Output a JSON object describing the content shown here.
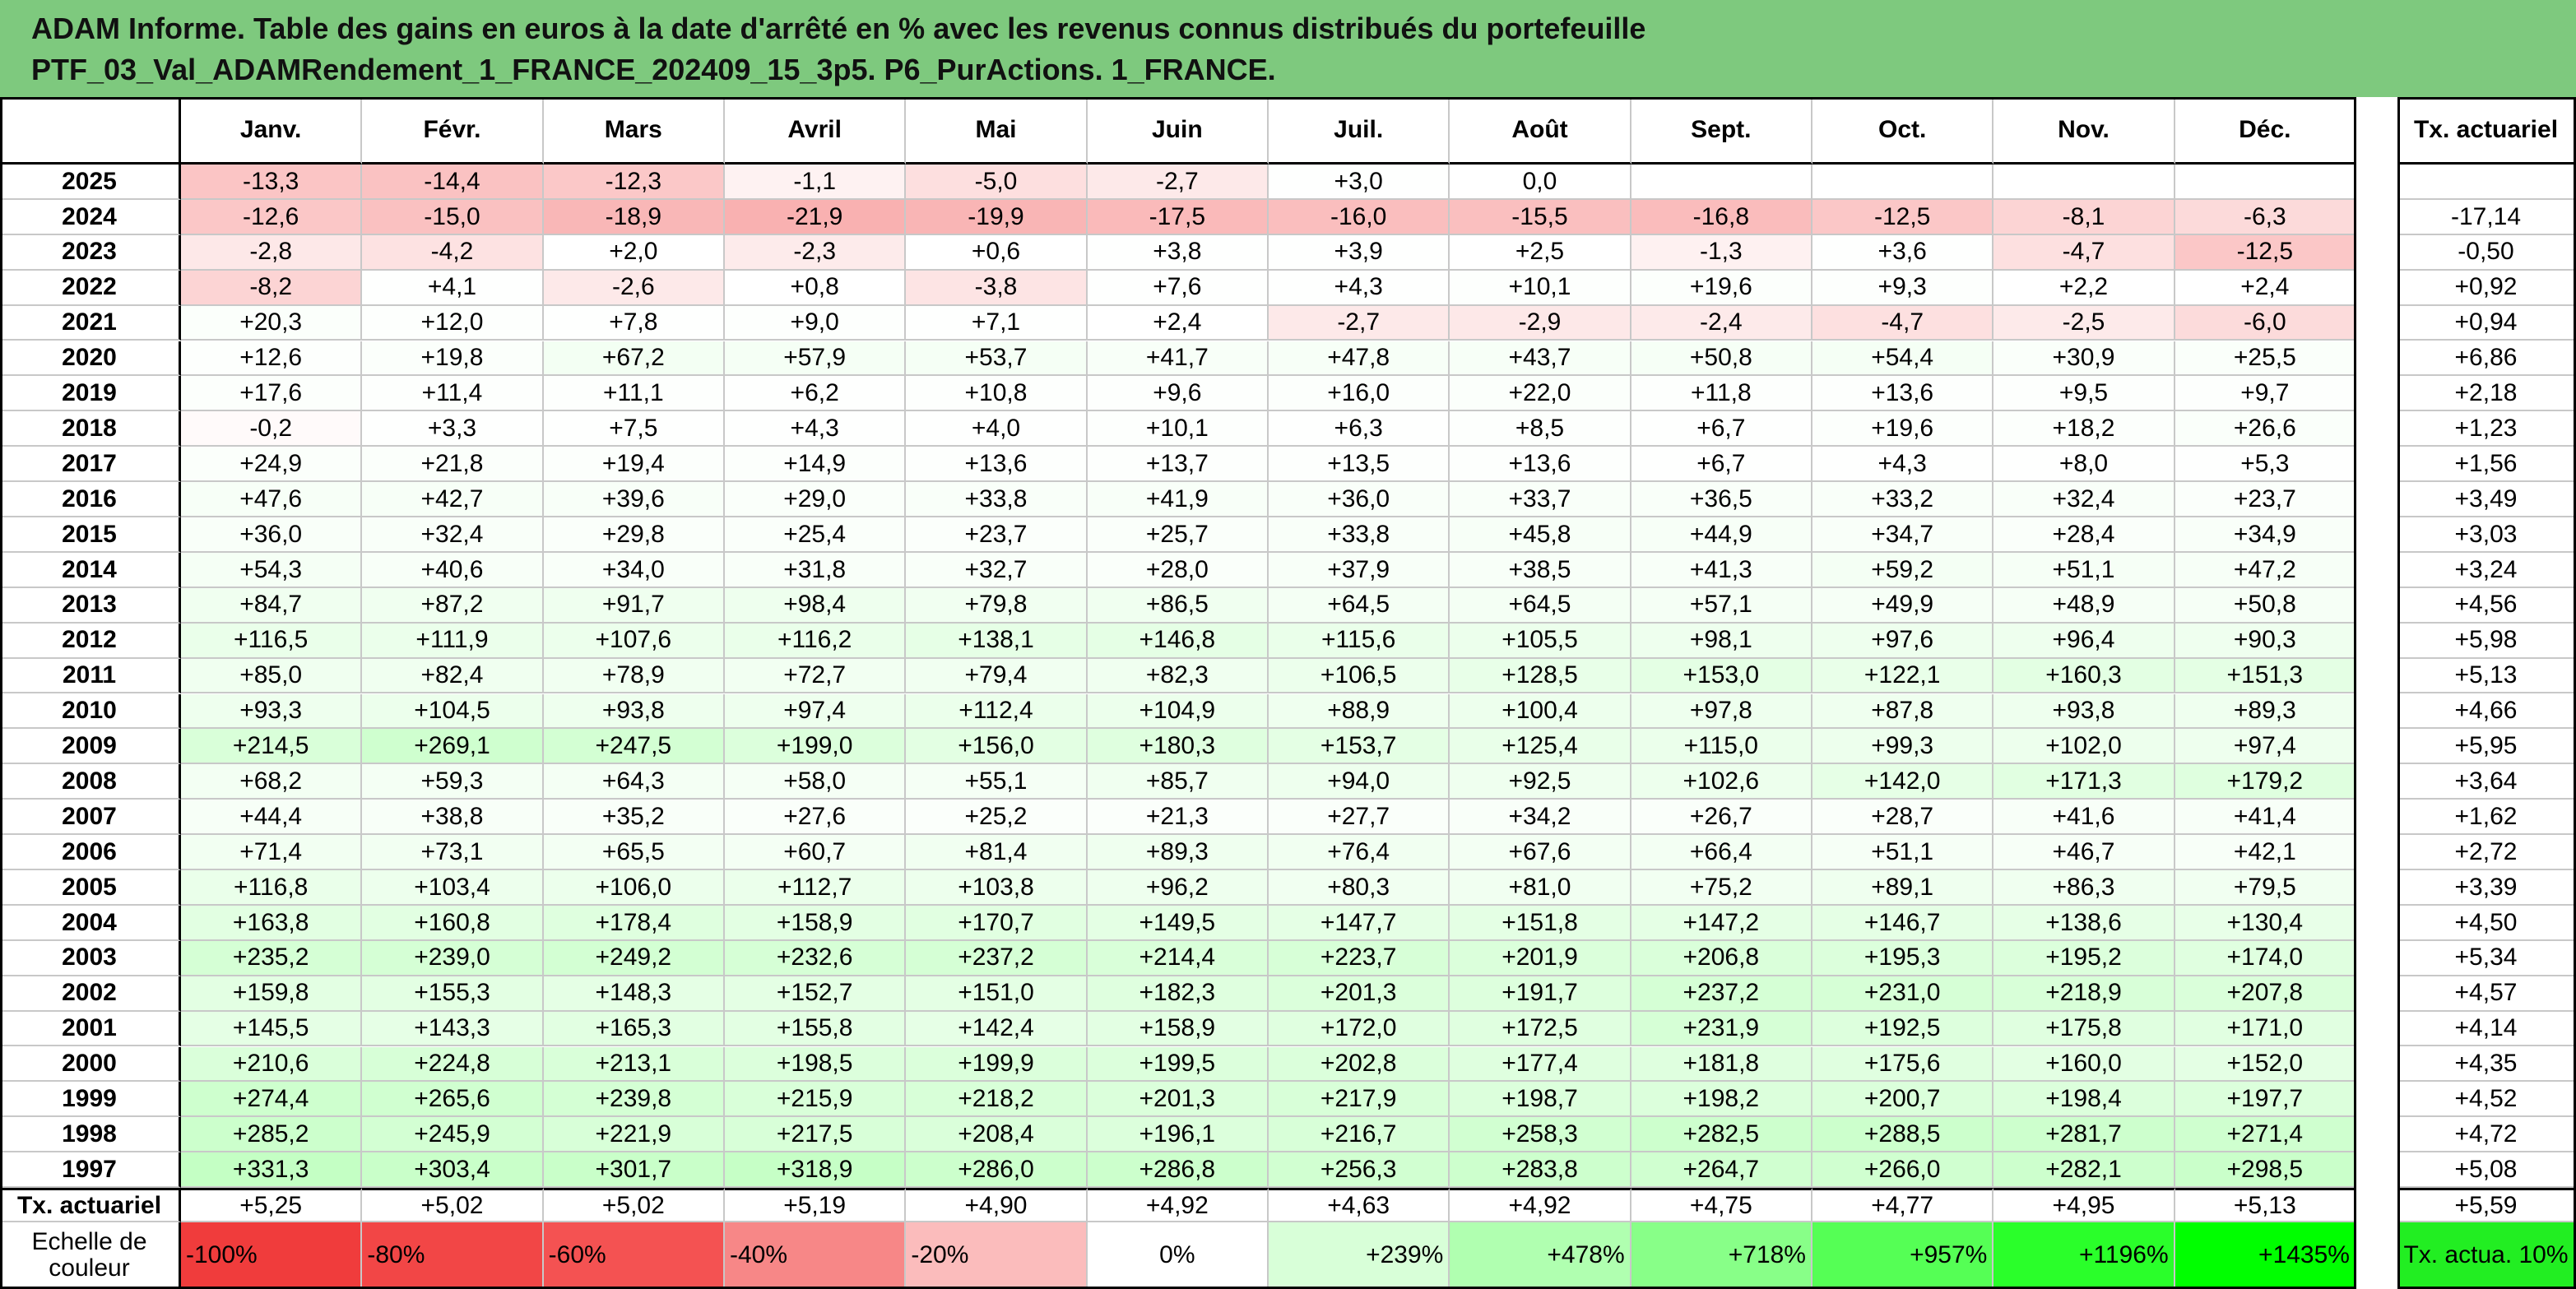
{
  "title": [
    "ADAM Informe. Table des gains en euros à la date d'arrêté en % avec les revenus connus distribués du portefeuille",
    "PTF_03_Val_ADAMRendement_1_FRANCE_202409_15_3p5. P6_PurActions. 1_FRANCE."
  ],
  "table": {
    "columns": [
      "Janv.",
      "Févr.",
      "Mars",
      "Avril",
      "Mai",
      "Juin",
      "Juil.",
      "Août",
      "Sept.",
      "Oct.",
      "Nov.",
      "Déc."
    ],
    "rate_header": "Tx. actuariel",
    "rows": [
      {
        "year": "2025",
        "values": [
          "-13,3",
          "-14,4",
          "-12,3",
          "-1,1",
          "-5,0",
          "-2,7",
          "+3,0",
          "0,0",
          null,
          null,
          null,
          null
        ],
        "rate": null
      },
      {
        "year": "2024",
        "values": [
          "-12,6",
          "-15,0",
          "-18,9",
          "-21,9",
          "-19,9",
          "-17,5",
          "-16,0",
          "-15,5",
          "-16,8",
          "-12,5",
          "-8,1",
          "-6,3"
        ],
        "rate": "-17,14"
      },
      {
        "year": "2023",
        "values": [
          "-2,8",
          "-4,2",
          "+2,0",
          "-2,3",
          "+0,6",
          "+3,8",
          "+3,9",
          "+2,5",
          "-1,3",
          "+3,6",
          "-4,7",
          "-12,5"
        ],
        "rate": "-0,50"
      },
      {
        "year": "2022",
        "values": [
          "-8,2",
          "+4,1",
          "-2,6",
          "+0,8",
          "-3,8",
          "+7,6",
          "+4,3",
          "+10,1",
          "+19,6",
          "+9,3",
          "+2,2",
          "+2,4"
        ],
        "rate": "+0,92"
      },
      {
        "year": "2021",
        "values": [
          "+20,3",
          "+12,0",
          "+7,8",
          "+9,0",
          "+7,1",
          "+2,4",
          "-2,7",
          "-2,9",
          "-2,4",
          "-4,7",
          "-2,5",
          "-6,0"
        ],
        "rate": "+0,94"
      },
      {
        "year": "2020",
        "values": [
          "+12,6",
          "+19,8",
          "+67,2",
          "+57,9",
          "+53,7",
          "+41,7",
          "+47,8",
          "+43,7",
          "+50,8",
          "+54,4",
          "+30,9",
          "+25,5"
        ],
        "rate": "+6,86"
      },
      {
        "year": "2019",
        "values": [
          "+17,6",
          "+11,4",
          "+11,1",
          "+6,2",
          "+10,8",
          "+9,6",
          "+16,0",
          "+22,0",
          "+11,8",
          "+13,6",
          "+9,5",
          "+9,7"
        ],
        "rate": "+2,18"
      },
      {
        "year": "2018",
        "values": [
          "-0,2",
          "+3,3",
          "+7,5",
          "+4,3",
          "+4,0",
          "+10,1",
          "+6,3",
          "+8,5",
          "+6,7",
          "+19,6",
          "+18,2",
          "+26,6"
        ],
        "rate": "+1,23"
      },
      {
        "year": "2017",
        "values": [
          "+24,9",
          "+21,8",
          "+19,4",
          "+14,9",
          "+13,6",
          "+13,7",
          "+13,5",
          "+13,6",
          "+6,7",
          "+4,3",
          "+8,0",
          "+5,3"
        ],
        "rate": "+1,56"
      },
      {
        "year": "2016",
        "values": [
          "+47,6",
          "+42,7",
          "+39,6",
          "+29,0",
          "+33,8",
          "+41,9",
          "+36,0",
          "+33,7",
          "+36,5",
          "+33,2",
          "+32,4",
          "+23,7"
        ],
        "rate": "+3,49"
      },
      {
        "year": "2015",
        "values": [
          "+36,0",
          "+32,4",
          "+29,8",
          "+25,4",
          "+23,7",
          "+25,7",
          "+33,8",
          "+45,8",
          "+44,9",
          "+34,7",
          "+28,4",
          "+34,9"
        ],
        "rate": "+3,03"
      },
      {
        "year": "2014",
        "values": [
          "+54,3",
          "+40,6",
          "+34,0",
          "+31,8",
          "+32,7",
          "+28,0",
          "+37,9",
          "+38,5",
          "+41,3",
          "+59,2",
          "+51,1",
          "+47,2"
        ],
        "rate": "+3,24"
      },
      {
        "year": "2013",
        "values": [
          "+84,7",
          "+87,2",
          "+91,7",
          "+98,4",
          "+79,8",
          "+86,5",
          "+64,5",
          "+64,5",
          "+57,1",
          "+49,9",
          "+48,9",
          "+50,8"
        ],
        "rate": "+4,56"
      },
      {
        "year": "2012",
        "values": [
          "+116,5",
          "+111,9",
          "+107,6",
          "+116,2",
          "+138,1",
          "+146,8",
          "+115,6",
          "+105,5",
          "+98,1",
          "+97,6",
          "+96,4",
          "+90,3"
        ],
        "rate": "+5,98"
      },
      {
        "year": "2011",
        "values": [
          "+85,0",
          "+82,4",
          "+78,9",
          "+72,7",
          "+79,4",
          "+82,3",
          "+106,5",
          "+128,5",
          "+153,0",
          "+122,1",
          "+160,3",
          "+151,3"
        ],
        "rate": "+5,13"
      },
      {
        "year": "2010",
        "values": [
          "+93,3",
          "+104,5",
          "+93,8",
          "+97,4",
          "+112,4",
          "+104,9",
          "+88,9",
          "+100,4",
          "+97,8",
          "+87,8",
          "+93,8",
          "+89,3"
        ],
        "rate": "+4,66"
      },
      {
        "year": "2009",
        "values": [
          "+214,5",
          "+269,1",
          "+247,5",
          "+199,0",
          "+156,0",
          "+180,3",
          "+153,7",
          "+125,4",
          "+115,0",
          "+99,3",
          "+102,0",
          "+97,4"
        ],
        "rate": "+5,95"
      },
      {
        "year": "2008",
        "values": [
          "+68,2",
          "+59,3",
          "+64,3",
          "+58,0",
          "+55,1",
          "+85,7",
          "+94,0",
          "+92,5",
          "+102,6",
          "+142,0",
          "+171,3",
          "+179,2"
        ],
        "rate": "+3,64"
      },
      {
        "year": "2007",
        "values": [
          "+44,4",
          "+38,8",
          "+35,2",
          "+27,6",
          "+25,2",
          "+21,3",
          "+27,7",
          "+34,2",
          "+26,7",
          "+28,7",
          "+41,6",
          "+41,4"
        ],
        "rate": "+1,62"
      },
      {
        "year": "2006",
        "values": [
          "+71,4",
          "+73,1",
          "+65,5",
          "+60,7",
          "+81,4",
          "+89,3",
          "+76,4",
          "+67,6",
          "+66,4",
          "+51,1",
          "+46,7",
          "+42,1"
        ],
        "rate": "+2,72"
      },
      {
        "year": "2005",
        "values": [
          "+116,8",
          "+103,4",
          "+106,0",
          "+112,7",
          "+103,8",
          "+96,2",
          "+80,3",
          "+81,0",
          "+75,2",
          "+89,1",
          "+86,3",
          "+79,5"
        ],
        "rate": "+3,39"
      },
      {
        "year": "2004",
        "values": [
          "+163,8",
          "+160,8",
          "+178,4",
          "+158,9",
          "+170,7",
          "+149,5",
          "+147,7",
          "+151,8",
          "+147,2",
          "+146,7",
          "+138,6",
          "+130,4"
        ],
        "rate": "+4,50"
      },
      {
        "year": "2003",
        "values": [
          "+235,2",
          "+239,0",
          "+249,2",
          "+232,6",
          "+237,2",
          "+214,4",
          "+223,7",
          "+201,9",
          "+206,8",
          "+195,3",
          "+195,2",
          "+174,0"
        ],
        "rate": "+5,34"
      },
      {
        "year": "2002",
        "values": [
          "+159,8",
          "+155,3",
          "+148,3",
          "+152,7",
          "+151,0",
          "+182,3",
          "+201,3",
          "+191,7",
          "+237,2",
          "+231,0",
          "+218,9",
          "+207,8"
        ],
        "rate": "+4,57"
      },
      {
        "year": "2001",
        "values": [
          "+145,5",
          "+143,3",
          "+165,3",
          "+155,8",
          "+142,4",
          "+158,9",
          "+172,0",
          "+172,5",
          "+231,9",
          "+192,5",
          "+175,8",
          "+171,0"
        ],
        "rate": "+4,14"
      },
      {
        "year": "2000",
        "values": [
          "+210,6",
          "+224,8",
          "+213,1",
          "+198,5",
          "+199,9",
          "+199,5",
          "+202,8",
          "+177,4",
          "+181,8",
          "+175,6",
          "+160,0",
          "+152,0"
        ],
        "rate": "+4,35"
      },
      {
        "year": "1999",
        "values": [
          "+274,4",
          "+265,6",
          "+239,8",
          "+215,9",
          "+218,2",
          "+201,3",
          "+217,9",
          "+198,7",
          "+198,2",
          "+200,7",
          "+198,4",
          "+197,7"
        ],
        "rate": "+4,52"
      },
      {
        "year": "1998",
        "values": [
          "+285,2",
          "+245,9",
          "+221,9",
          "+217,5",
          "+208,4",
          "+196,1",
          "+216,7",
          "+258,3",
          "+282,5",
          "+288,5",
          "+281,7",
          "+271,4"
        ],
        "rate": "+4,72"
      },
      {
        "year": "1997",
        "values": [
          "+331,3",
          "+303,4",
          "+301,7",
          "+318,9",
          "+286,0",
          "+286,8",
          "+256,3",
          "+283,8",
          "+264,7",
          "+266,0",
          "+282,1",
          "+298,5"
        ],
        "rate": "+5,08"
      }
    ],
    "footer": {
      "label": "Tx. actuariel",
      "values": [
        "+5,25",
        "+5,02",
        "+5,02",
        "+5,19",
        "+4,90",
        "+4,92",
        "+4,63",
        "+4,92",
        "+4,75",
        "+4,77",
        "+4,95",
        "+5,13"
      ],
      "rate": "+5,59"
    },
    "scale": {
      "label": "Echelle de couleur",
      "steps": [
        "-100%",
        "-80%",
        "-60%",
        "-40%",
        "-20%",
        "0%",
        "+239%",
        "+478%",
        "+718%",
        "+957%",
        "+1196%",
        "+1435%"
      ],
      "rate_label": "Tx. actua. 10%"
    }
  }
}
